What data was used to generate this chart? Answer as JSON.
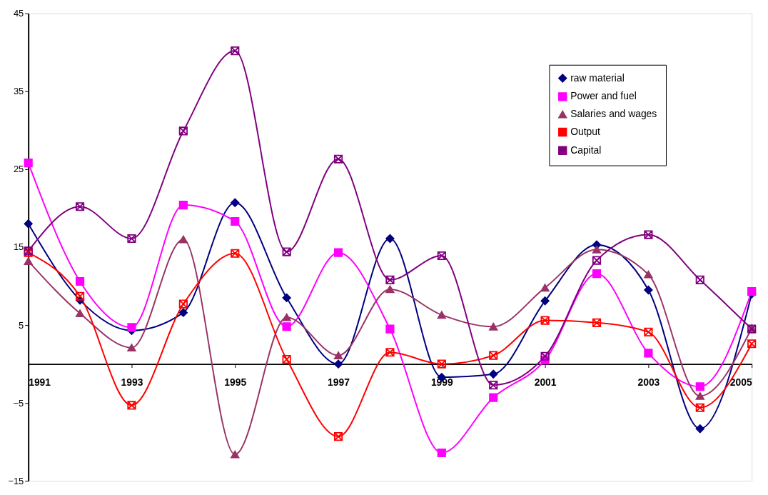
{
  "chart_data": {
    "type": "line",
    "x": [
      1991,
      1992,
      1993,
      1994,
      1995,
      1996,
      1997,
      1998,
      1999,
      2000,
      2001,
      2002,
      2003,
      2004,
      2005
    ],
    "xlim": [
      1991,
      2005
    ],
    "xticks": [
      1991,
      1993,
      1995,
      1997,
      1999,
      2001,
      2003,
      2005
    ],
    "ylim": [
      -15,
      45
    ],
    "yticks": [
      -15,
      -5,
      5,
      15,
      25,
      35,
      45
    ],
    "grid": false,
    "legend": "top right",
    "series": [
      {
        "name": "raw material",
        "color": "#000080",
        "marker": "diamond",
        "values": [
          18.0,
          8.2,
          4.3,
          6.6,
          20.7,
          8.5,
          0,
          16.1,
          -1.7,
          -1.3,
          8.1,
          15.3,
          9.5,
          -8.3,
          9.0
        ]
      },
      {
        "name": "Power and fuel",
        "color": "#ff00ff",
        "marker": "square",
        "values": [
          25.8,
          10.6,
          4.7,
          20.4,
          18.3,
          4.8,
          14.3,
          4.5,
          -11.4,
          -4.3,
          0.5,
          11.6,
          1.4,
          -2.9,
          9.3
        ]
      },
      {
        "name": "Salaries and wages",
        "color": "#993366",
        "marker": "triangle",
        "values": [
          13.2,
          6.5,
          2.1,
          16.0,
          -11.6,
          6.0,
          1.1,
          9.6,
          6.3,
          4.8,
          9.8,
          14.7,
          11.5,
          -4.1,
          4.6
        ]
      },
      {
        "name": "Output",
        "color": "#ff0000",
        "marker": "cross",
        "values": [
          14.3,
          8.7,
          -5.3,
          7.7,
          14.2,
          0.6,
          -9.3,
          1.5,
          0,
          1.1,
          5.6,
          5.3,
          4.1,
          -5.6,
          2.6
        ]
      },
      {
        "name": "Capital",
        "color": "#800080",
        "marker": "cross",
        "values": [
          14.5,
          20.2,
          16.1,
          29.9,
          40.2,
          14.4,
          26.3,
          10.8,
          13.9,
          -2.7,
          1.0,
          13.3,
          16.6,
          10.8,
          4.5
        ]
      }
    ]
  }
}
